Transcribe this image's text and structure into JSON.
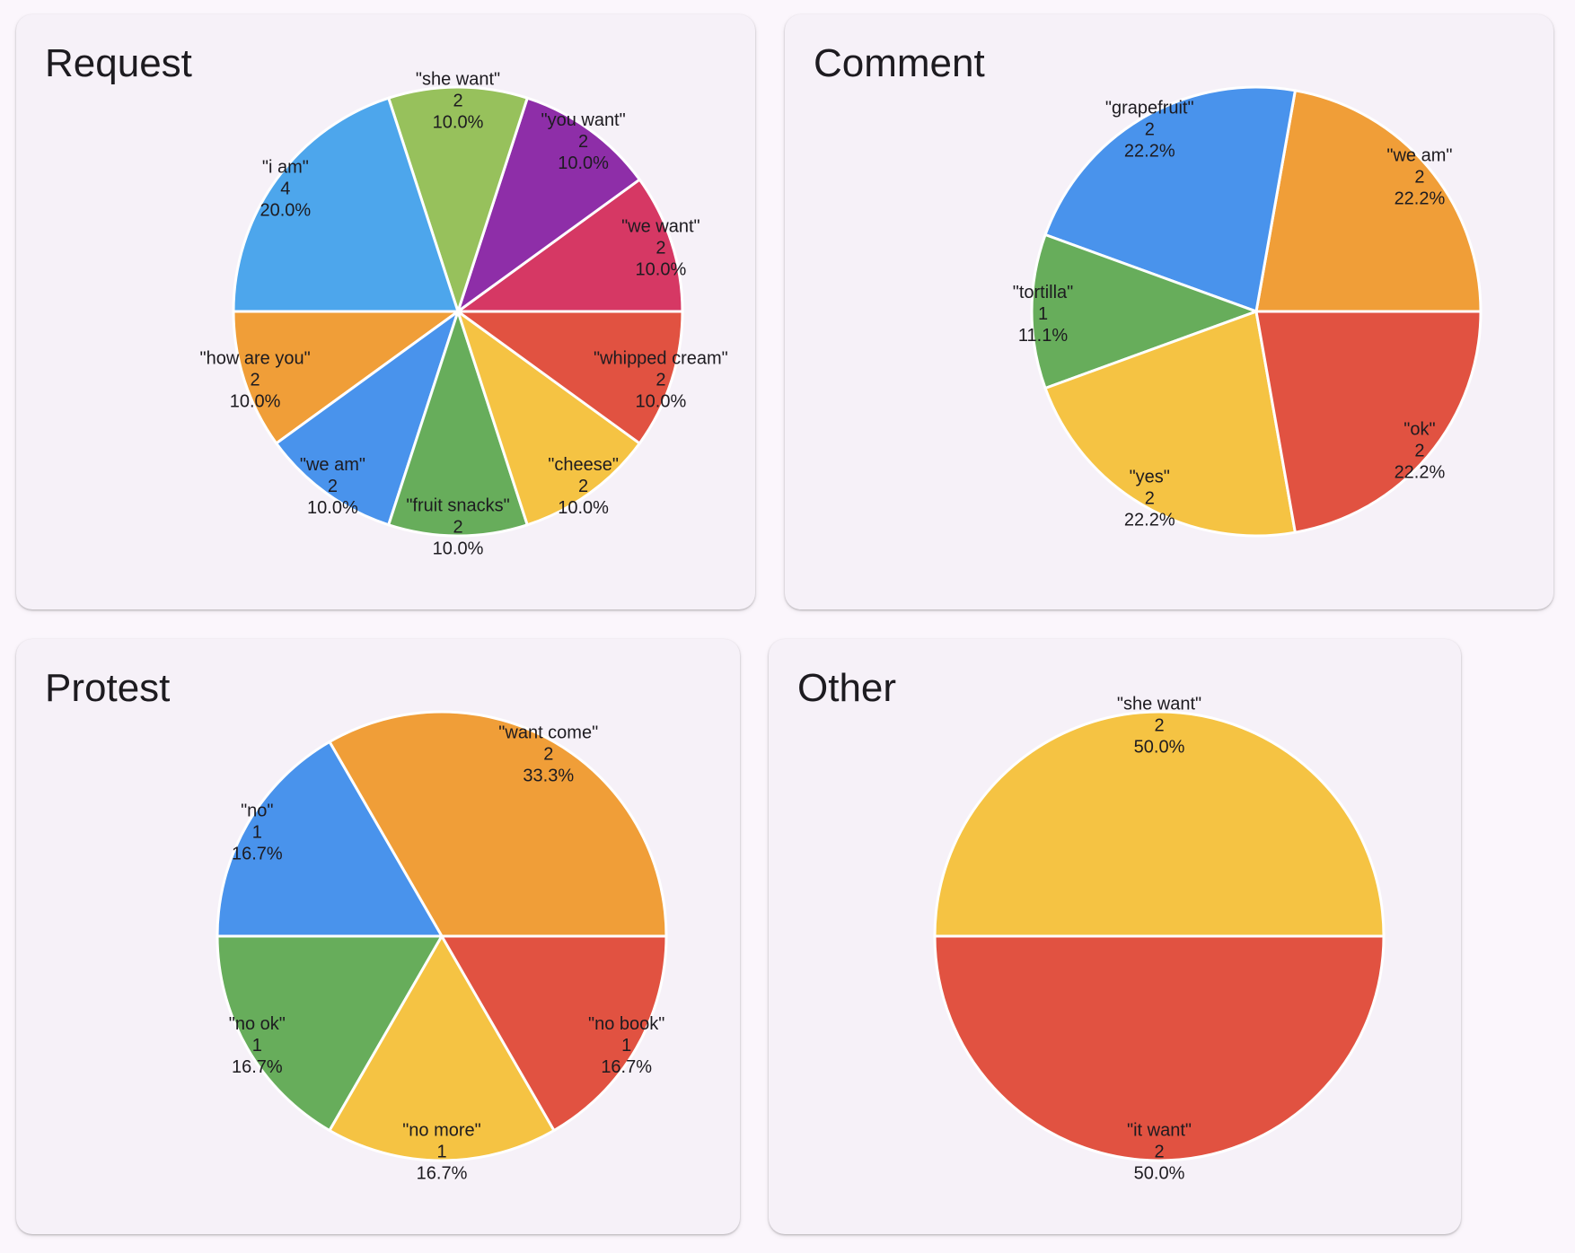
{
  "chart_data": [
    {
      "type": "pie",
      "title": "Request",
      "slices": [
        {
          "label": "\"we want\"",
          "value": 2,
          "percent": "10.0%",
          "color": "#d63864"
        },
        {
          "label": "\"you want\"",
          "value": 2,
          "percent": "10.0%",
          "color": "#8e2ea8"
        },
        {
          "label": "\"she want\"",
          "value": 2,
          "percent": "10.0%",
          "color": "#97c15c"
        },
        {
          "label": "\"i am\"",
          "value": 4,
          "percent": "20.0%",
          "color": "#4da6ec"
        },
        {
          "label": "\"how are you\"",
          "value": 2,
          "percent": "10.0%",
          "color": "#f09e38"
        },
        {
          "label": "\"we am\"",
          "value": 2,
          "percent": "10.0%",
          "color": "#4993ec"
        },
        {
          "label": "\"fruit snacks\"",
          "value": 2,
          "percent": "10.0%",
          "color": "#67ad5b"
        },
        {
          "label": "\"cheese\"",
          "value": 2,
          "percent": "10.0%",
          "color": "#f5c343"
        },
        {
          "label": "\"whipped cream\"",
          "value": 2,
          "percent": "10.0%",
          "color": "#e15241"
        }
      ]
    },
    {
      "type": "pie",
      "title": "Comment",
      "slices": [
        {
          "label": "\"we am\"",
          "value": 2,
          "percent": "22.2%",
          "color": "#f09e38"
        },
        {
          "label": "\"grapefruit\"",
          "value": 2,
          "percent": "22.2%",
          "color": "#4993ec"
        },
        {
          "label": "\"tortilla\"",
          "value": 1,
          "percent": "11.1%",
          "color": "#67ad5b"
        },
        {
          "label": "\"yes\"",
          "value": 2,
          "percent": "22.2%",
          "color": "#f5c343"
        },
        {
          "label": "\"ok\"",
          "value": 2,
          "percent": "22.2%",
          "color": "#e15241"
        }
      ]
    },
    {
      "type": "pie",
      "title": "Protest",
      "slices": [
        {
          "label": "\"want come\"",
          "value": 2,
          "percent": "33.3%",
          "color": "#f09e38"
        },
        {
          "label": "\"no\"",
          "value": 1,
          "percent": "16.7%",
          "color": "#4993ec"
        },
        {
          "label": "\"no ok\"",
          "value": 1,
          "percent": "16.7%",
          "color": "#67ad5b"
        },
        {
          "label": "\"no more\"",
          "value": 1,
          "percent": "16.7%",
          "color": "#f5c343"
        },
        {
          "label": "\"no book\"",
          "value": 1,
          "percent": "16.7%",
          "color": "#e15241"
        }
      ]
    },
    {
      "type": "pie",
      "title": "Other",
      "slices": [
        {
          "label": "\"she want\"",
          "value": 2,
          "percent": "50.0%",
          "color": "#f5c343"
        },
        {
          "label": "\"it want\"",
          "value": 2,
          "percent": "50.0%",
          "color": "#e15241"
        }
      ]
    }
  ]
}
